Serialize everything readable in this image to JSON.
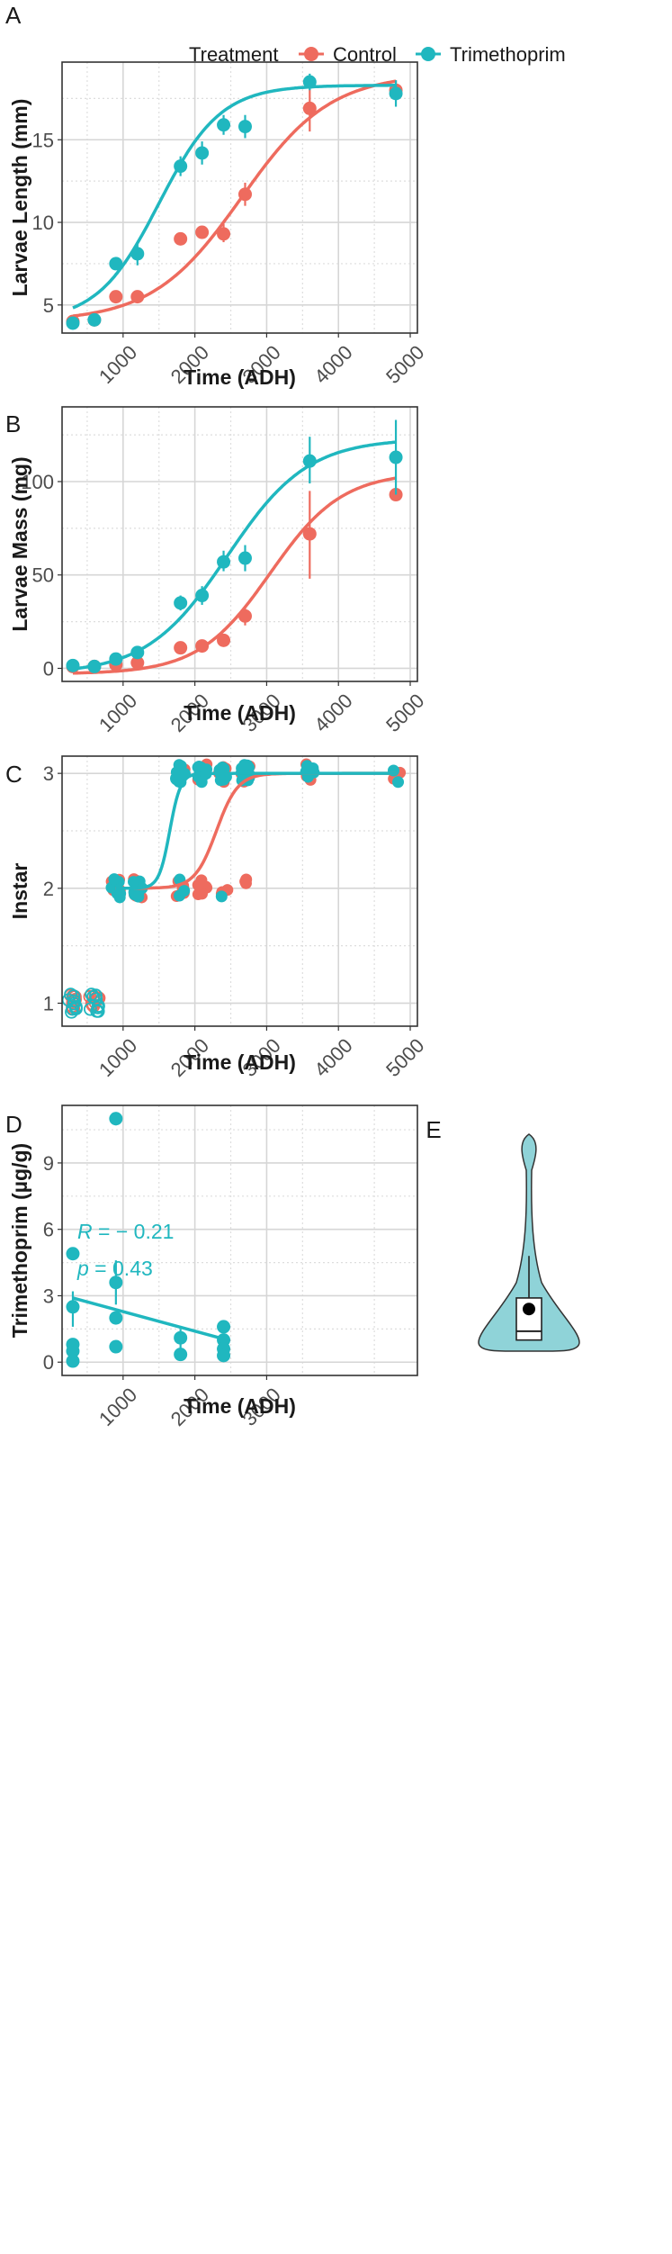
{
  "legend": {
    "title": "Treatment",
    "entries": [
      {
        "name": "Control",
        "color": "#ee6b5e"
      },
      {
        "name": "Trimethoprim",
        "color": "#20b7bf"
      }
    ]
  },
  "colors": {
    "control": "#ee6b5e",
    "trimethoprim": "#20b7bf",
    "violin_fill": "#8fd3d8"
  },
  "chart_data": [
    {
      "panel": "A",
      "type": "line",
      "title": "",
      "xlabel": "Time (ADH)",
      "ylabel": "Larvae Length (mm)",
      "xlim": [
        150,
        5100
      ],
      "ylim": [
        3.3,
        19.7
      ],
      "xticks": [
        1000,
        2000,
        3000,
        4000,
        5000
      ],
      "yticks": [
        5,
        10,
        15
      ],
      "grid": true,
      "series": [
        {
          "name": "Control",
          "points": [
            {
              "x": 300,
              "y": 4.0,
              "lo": 3.8,
              "hi": 4.2
            },
            {
              "x": 600,
              "y": 4.1,
              "lo": 3.9,
              "hi": 4.3
            },
            {
              "x": 900,
              "y": 5.5,
              "lo": 5.3,
              "hi": 5.7
            },
            {
              "x": 1200,
              "y": 5.5,
              "lo": 5.2,
              "hi": 5.8
            },
            {
              "x": 1800,
              "y": 9.0,
              "lo": 8.7,
              "hi": 9.3
            },
            {
              "x": 2100,
              "y": 9.4,
              "lo": 9.2,
              "hi": 9.6
            },
            {
              "x": 2400,
              "y": 9.3,
              "lo": 8.8,
              "hi": 9.9
            },
            {
              "x": 2700,
              "y": 11.7,
              "lo": 11.0,
              "hi": 12.4
            },
            {
              "x": 3600,
              "y": 16.9,
              "lo": 15.5,
              "hi": 18.3
            },
            {
              "x": 4800,
              "y": 18.0,
              "lo": 17.4,
              "hi": 18.6
            }
          ],
          "curve": {
            "base": 4.0,
            "amp": 15.0,
            "mid": 2650,
            "scale": 620
          }
        },
        {
          "name": "Trimethoprim",
          "points": [
            {
              "x": 300,
              "y": 3.9,
              "lo": 3.7,
              "hi": 4.1
            },
            {
              "x": 600,
              "y": 4.1,
              "lo": 3.9,
              "hi": 4.3
            },
            {
              "x": 900,
              "y": 7.5,
              "lo": 7.3,
              "hi": 7.7
            },
            {
              "x": 1200,
              "y": 8.1,
              "lo": 7.4,
              "hi": 8.8
            },
            {
              "x": 1800,
              "y": 13.4,
              "lo": 12.8,
              "hi": 14.0
            },
            {
              "x": 2100,
              "y": 14.2,
              "lo": 13.5,
              "hi": 14.9
            },
            {
              "x": 2400,
              "y": 15.9,
              "lo": 15.3,
              "hi": 16.5
            },
            {
              "x": 2700,
              "y": 15.8,
              "lo": 15.1,
              "hi": 16.5
            },
            {
              "x": 3600,
              "y": 18.5,
              "lo": 18.0,
              "hi": 19.0
            },
            {
              "x": 4800,
              "y": 17.8,
              "lo": 17.0,
              "hi": 18.6
            }
          ],
          "curve": {
            "base": 4.0,
            "amp": 14.3,
            "mid": 1500,
            "scale": 430
          }
        }
      ]
    },
    {
      "panel": "B",
      "type": "line",
      "title": "",
      "xlabel": "Time (ADH)",
      "ylabel": "Larvae Mass (mg)",
      "xlim": [
        150,
        5100
      ],
      "ylim": [
        -7,
        140
      ],
      "xticks": [
        1000,
        2000,
        3000,
        4000,
        5000
      ],
      "yticks": [
        0,
        50,
        100
      ],
      "grid": true,
      "series": [
        {
          "name": "Control",
          "points": [
            {
              "x": 300,
              "y": 1.0,
              "lo": 0.5,
              "hi": 1.5
            },
            {
              "x": 600,
              "y": 1.0,
              "lo": 0.5,
              "hi": 1.5
            },
            {
              "x": 900,
              "y": 2.0,
              "lo": 1.5,
              "hi": 2.5
            },
            {
              "x": 1200,
              "y": 3.0,
              "lo": 2.0,
              "hi": 4.0
            },
            {
              "x": 1800,
              "y": 11.0,
              "lo": 9.5,
              "hi": 12.5
            },
            {
              "x": 2100,
              "y": 12.0,
              "lo": 10.5,
              "hi": 13.5
            },
            {
              "x": 2400,
              "y": 15.0,
              "lo": 13.0,
              "hi": 17.0
            },
            {
              "x": 2700,
              "y": 28.0,
              "lo": 23.0,
              "hi": 33.0
            },
            {
              "x": 3600,
              "y": 72.0,
              "lo": 48.0,
              "hi": 95.0
            },
            {
              "x": 4800,
              "y": 93.0,
              "lo": 91.0,
              "hi": 95.0
            }
          ],
          "curve": {
            "base": -3,
            "amp": 108,
            "mid": 3050,
            "scale": 500
          }
        },
        {
          "name": "Trimethoprim",
          "points": [
            {
              "x": 300,
              "y": 1.5,
              "lo": 1.0,
              "hi": 2.0
            },
            {
              "x": 600,
              "y": 1.0,
              "lo": 0.5,
              "hi": 1.5
            },
            {
              "x": 900,
              "y": 5.0,
              "lo": 4.0,
              "hi": 6.0
            },
            {
              "x": 1200,
              "y": 8.5,
              "lo": 7.0,
              "hi": 10.0
            },
            {
              "x": 1800,
              "y": 35.0,
              "lo": 31.0,
              "hi": 39.0
            },
            {
              "x": 2100,
              "y": 39.0,
              "lo": 34.0,
              "hi": 44.0
            },
            {
              "x": 2400,
              "y": 57.0,
              "lo": 52.0,
              "hi": 63.0
            },
            {
              "x": 2700,
              "y": 59.0,
              "lo": 52.0,
              "hi": 66.0
            },
            {
              "x": 3600,
              "y": 111.0,
              "lo": 99.0,
              "hi": 124.0
            },
            {
              "x": 4800,
              "y": 113.0,
              "lo": 93.0,
              "hi": 133.0
            }
          ],
          "curve": {
            "base": -3,
            "amp": 126,
            "mid": 2450,
            "scale": 560
          }
        }
      ]
    },
    {
      "panel": "C",
      "type": "scatter",
      "title": "",
      "xlabel": "Time (ADH)",
      "ylabel": "Instar",
      "xlim": [
        150,
        5100
      ],
      "ylim": [
        0.8,
        3.15
      ],
      "xticks": [
        1000,
        2000,
        3000,
        4000,
        5000
      ],
      "yticks": [
        1,
        2,
        3
      ],
      "grid": true,
      "series": [
        {
          "name": "Control",
          "points": [
            {
              "x": 300,
              "y": 1,
              "n": 9
            },
            {
              "x": 600,
              "y": 1,
              "n": 9
            },
            {
              "x": 900,
              "y": 2,
              "n": 10
            },
            {
              "x": 1200,
              "y": 2,
              "n": 10
            },
            {
              "x": 1800,
              "y": 2,
              "n": 8
            },
            {
              "x": 2100,
              "y": 2,
              "n": 8
            },
            {
              "x": 2400,
              "y": 2,
              "n": 3
            },
            {
              "x": 2700,
              "y": 2,
              "n": 3
            },
            {
              "x": 1800,
              "y": 3,
              "n": 2
            },
            {
              "x": 2100,
              "y": 3,
              "n": 5
            },
            {
              "x": 2400,
              "y": 3,
              "n": 8
            },
            {
              "x": 2700,
              "y": 3,
              "n": 9
            },
            {
              "x": 3600,
              "y": 3,
              "n": 6
            },
            {
              "x": 4800,
              "y": 3,
              "n": 2
            }
          ],
          "curve": {
            "base": 2,
            "amp": 1,
            "mid": 2300,
            "scale": 150
          }
        },
        {
          "name": "Trimethoprim",
          "points": [
            {
              "x": 300,
              "y": 1,
              "n": 9
            },
            {
              "x": 600,
              "y": 1,
              "n": 9
            },
            {
              "x": 900,
              "y": 2,
              "n": 10
            },
            {
              "x": 1200,
              "y": 2,
              "n": 10
            },
            {
              "x": 1800,
              "y": 2,
              "n": 3
            },
            {
              "x": 2400,
              "y": 2,
              "n": 1
            },
            {
              "x": 1800,
              "y": 3,
              "n": 9
            },
            {
              "x": 2100,
              "y": 3,
              "n": 12
            },
            {
              "x": 2400,
              "y": 3,
              "n": 10
            },
            {
              "x": 2700,
              "y": 3,
              "n": 9
            },
            {
              "x": 3600,
              "y": 3,
              "n": 7
            },
            {
              "x": 4800,
              "y": 3,
              "n": 2
            }
          ],
          "curve": {
            "base": 2,
            "amp": 1,
            "mid": 1650,
            "scale": 75
          }
        }
      ]
    },
    {
      "panel": "D",
      "type": "scatter",
      "title": "",
      "xlabel": "Time (ADH)",
      "ylabel": "Trimethoprim (µg/g)",
      "xlim": [
        150,
        5100
      ],
      "ylim": [
        -0.6,
        11.6
      ],
      "xticks": [
        1000,
        2000,
        3000
      ],
      "yticks": [
        0,
        3,
        6,
        9
      ],
      "grid": true,
      "annotation": {
        "r_label": "R",
        "r_value": "= − 0.21",
        "p_label": "p",
        "p_value": "= 0.43"
      },
      "series": [
        {
          "name": "Trimethoprim",
          "points": [
            {
              "x": 300,
              "y": 4.9
            },
            {
              "x": 300,
              "y": 2.5,
              "lo": 1.6,
              "hi": 3.2
            },
            {
              "x": 300,
              "y": 0.8
            },
            {
              "x": 300,
              "y": 0.5
            },
            {
              "x": 300,
              "y": 0.05
            },
            {
              "x": 900,
              "y": 11.0,
              "lo": 10.7,
              "hi": 11.3
            },
            {
              "x": 900,
              "y": 3.6,
              "lo": 2.6,
              "hi": 4.6
            },
            {
              "x": 900,
              "y": 2.0
            },
            {
              "x": 900,
              "y": 0.7
            },
            {
              "x": 1800,
              "y": 1.1,
              "lo": 0.5,
              "hi": 1.5
            },
            {
              "x": 1800,
              "y": 0.35
            },
            {
              "x": 2400,
              "y": 1.6
            },
            {
              "x": 2400,
              "y": 1.0
            },
            {
              "x": 2400,
              "y": 0.6
            },
            {
              "x": 2400,
              "y": 0.3
            }
          ],
          "fit": {
            "x0": 300,
            "y0": 2.9,
            "x1": 2400,
            "y1": 1.05
          }
        }
      ]
    },
    {
      "panel": "E",
      "type": "violin",
      "title": "",
      "ylim": [
        -0.6,
        11.6
      ],
      "violin": {
        "min": 0.5,
        "max": 10.3,
        "q1": 1.0,
        "median": 1.4,
        "q3": 2.9,
        "mean": 2.4,
        "whisker_high": 4.8
      }
    }
  ]
}
